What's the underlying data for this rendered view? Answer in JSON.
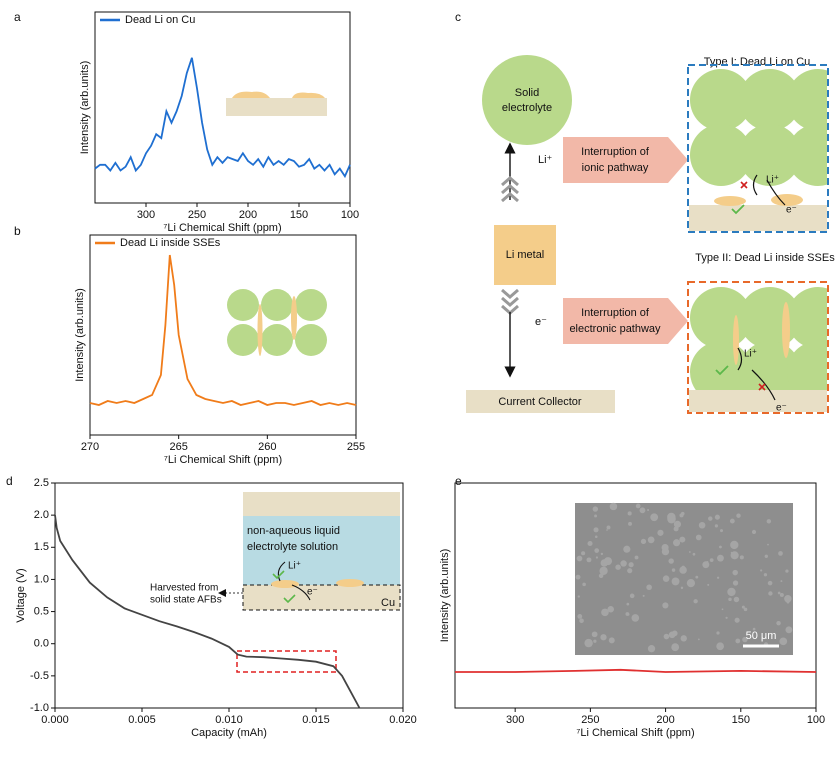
{
  "chart_data": [
    {
      "type": "line",
      "panel_label": "a",
      "xlabel": "⁷Li Chemical Shift (ppm)",
      "ylabel": "Intensity (arb.units)",
      "xlim": [
        350,
        100
      ],
      "xticks": [
        300,
        250,
        200,
        150,
        100
      ],
      "ylim": [
        0,
        1
      ],
      "series": [
        {
          "name": "Dead Li on Cu",
          "color": "#1f6fd1",
          "x": [
            350,
            345,
            340,
            335,
            330,
            325,
            320,
            315,
            310,
            305,
            300,
            295,
            290,
            285,
            280,
            275,
            270,
            265,
            260,
            255,
            250,
            245,
            240,
            235,
            230,
            225,
            220,
            215,
            210,
            205,
            200,
            195,
            190,
            185,
            180,
            175,
            170,
            165,
            160,
            155,
            150,
            145,
            140,
            135,
            130,
            125,
            120,
            115,
            110,
            105,
            100
          ],
          "values": [
            0.18,
            0.2,
            0.2,
            0.17,
            0.21,
            0.17,
            0.19,
            0.24,
            0.17,
            0.2,
            0.26,
            0.3,
            0.36,
            0.34,
            0.48,
            0.42,
            0.48,
            0.56,
            0.68,
            0.76,
            0.6,
            0.42,
            0.28,
            0.2,
            0.24,
            0.21,
            0.24,
            0.23,
            0.22,
            0.26,
            0.22,
            0.2,
            0.23,
            0.19,
            0.24,
            0.2,
            0.22,
            0.2,
            0.23,
            0.22,
            0.19,
            0.2,
            0.23,
            0.18,
            0.2,
            0.17,
            0.2,
            0.15,
            0.18,
            0.14,
            0.2
          ]
        }
      ]
    },
    {
      "type": "line",
      "panel_label": "b",
      "xlabel": "⁷Li Chemical Shift (ppm)",
      "ylabel": "Intensity (arb.units)",
      "xlim": [
        270,
        255
      ],
      "xticks": [
        270,
        265,
        260,
        255
      ],
      "ylim": [
        0,
        1
      ],
      "series": [
        {
          "name": "Dead Li inside SSEs",
          "color": "#f07c1a",
          "x": [
            270,
            269.5,
            269,
            268.5,
            268,
            267.5,
            267,
            266.5,
            266,
            265.75,
            265.5,
            265.25,
            265,
            264.5,
            264,
            263.5,
            263,
            262.5,
            262,
            261.5,
            261,
            260.5,
            260,
            259.5,
            259,
            258.5,
            258,
            257.5,
            257,
            256.5,
            256,
            255.5,
            255
          ],
          "values": [
            0.16,
            0.15,
            0.17,
            0.16,
            0.17,
            0.16,
            0.18,
            0.2,
            0.3,
            0.55,
            0.9,
            0.75,
            0.5,
            0.28,
            0.2,
            0.18,
            0.17,
            0.16,
            0.17,
            0.15,
            0.16,
            0.17,
            0.15,
            0.16,
            0.16,
            0.15,
            0.16,
            0.17,
            0.15,
            0.16,
            0.15,
            0.16,
            0.15
          ]
        }
      ]
    },
    {
      "type": "line",
      "panel_label": "d",
      "xlabel": "Capacity (mAh)",
      "ylabel": "Voltage (V)",
      "xlim": [
        0,
        0.02
      ],
      "xticks": [
        {
          "value": 0,
          "label": "0.000"
        },
        0.005,
        {
          "value": 0.01,
          "label": "0.010"
        },
        0.015,
        {
          "value": 0.02,
          "label": "0.020"
        }
      ],
      "ylim": [
        -1,
        2.5
      ],
      "yticks": [
        2.5,
        {
          "value": 2,
          "label": "2.0"
        },
        1.5,
        {
          "value": 1,
          "label": "1.0"
        },
        0.5,
        {
          "value": 0,
          "label": "0.0"
        },
        -0.5,
        {
          "value": -1,
          "label": "-1.0"
        }
      ],
      "series": [
        {
          "color": "#444444",
          "x": [
            0,
            0.0001,
            0.0003,
            0.001,
            0.002,
            0.003,
            0.004,
            0.005,
            0.006,
            0.007,
            0.008,
            0.009,
            0.01,
            0.0105,
            0.011,
            0.012,
            0.013,
            0.014,
            0.015,
            0.016,
            0.0165,
            0.017,
            0.0175
          ],
          "values": [
            2.0,
            1.8,
            1.6,
            1.3,
            0.95,
            0.72,
            0.55,
            0.45,
            0.35,
            0.27,
            0.18,
            0.08,
            -0.05,
            -0.17,
            -0.2,
            -0.21,
            -0.23,
            -0.25,
            -0.28,
            -0.35,
            -0.5,
            -0.75,
            -1.0
          ]
        }
      ],
      "annotations": {
        "harvested": [
          "Harvested from",
          "solid state AFBs"
        ],
        "electrolyte": [
          "non-aqueous liquid",
          "electrolyte solution"
        ],
        "li_ion": "Li⁺",
        "electron": "e⁻",
        "collector": "Cu"
      }
    },
    {
      "type": "line",
      "panel_label": "e",
      "xlabel": "⁷Li Chemical Shift (ppm)",
      "ylabel": "Intensity (arb.units)",
      "xlim": [
        340,
        100
      ],
      "xticks": [
        300,
        250,
        200,
        150,
        100
      ],
      "ylim": [
        0,
        1
      ],
      "series": [
        {
          "color": "#e03030",
          "x": [
            340,
            300,
            260,
            230,
            200,
            150,
            100
          ],
          "values": [
            0.16,
            0.16,
            0.165,
            0.17,
            0.16,
            0.165,
            0.16
          ]
        }
      ],
      "scale_bar": "50 μm"
    }
  ],
  "diagram": {
    "panel_label": "c",
    "solid_electrolyte": [
      "Solid",
      "electrolyte"
    ],
    "li_metal": "Li metal",
    "current_collector": "Current Collector",
    "li_ion": "Li⁺",
    "electron": "e⁻",
    "ionic": [
      "Interruption of",
      "ionic pathway"
    ],
    "electronic": [
      "Interruption of",
      "electronic pathway"
    ],
    "type1": {
      "title": "Type I: Dead Li on Cu",
      "li_ion": "Li⁺",
      "electron": "e⁻"
    },
    "type2": {
      "title": "Type II: Dead Li inside SSEs",
      "li_ion": "Li⁺",
      "electron": "e⁻"
    }
  }
}
